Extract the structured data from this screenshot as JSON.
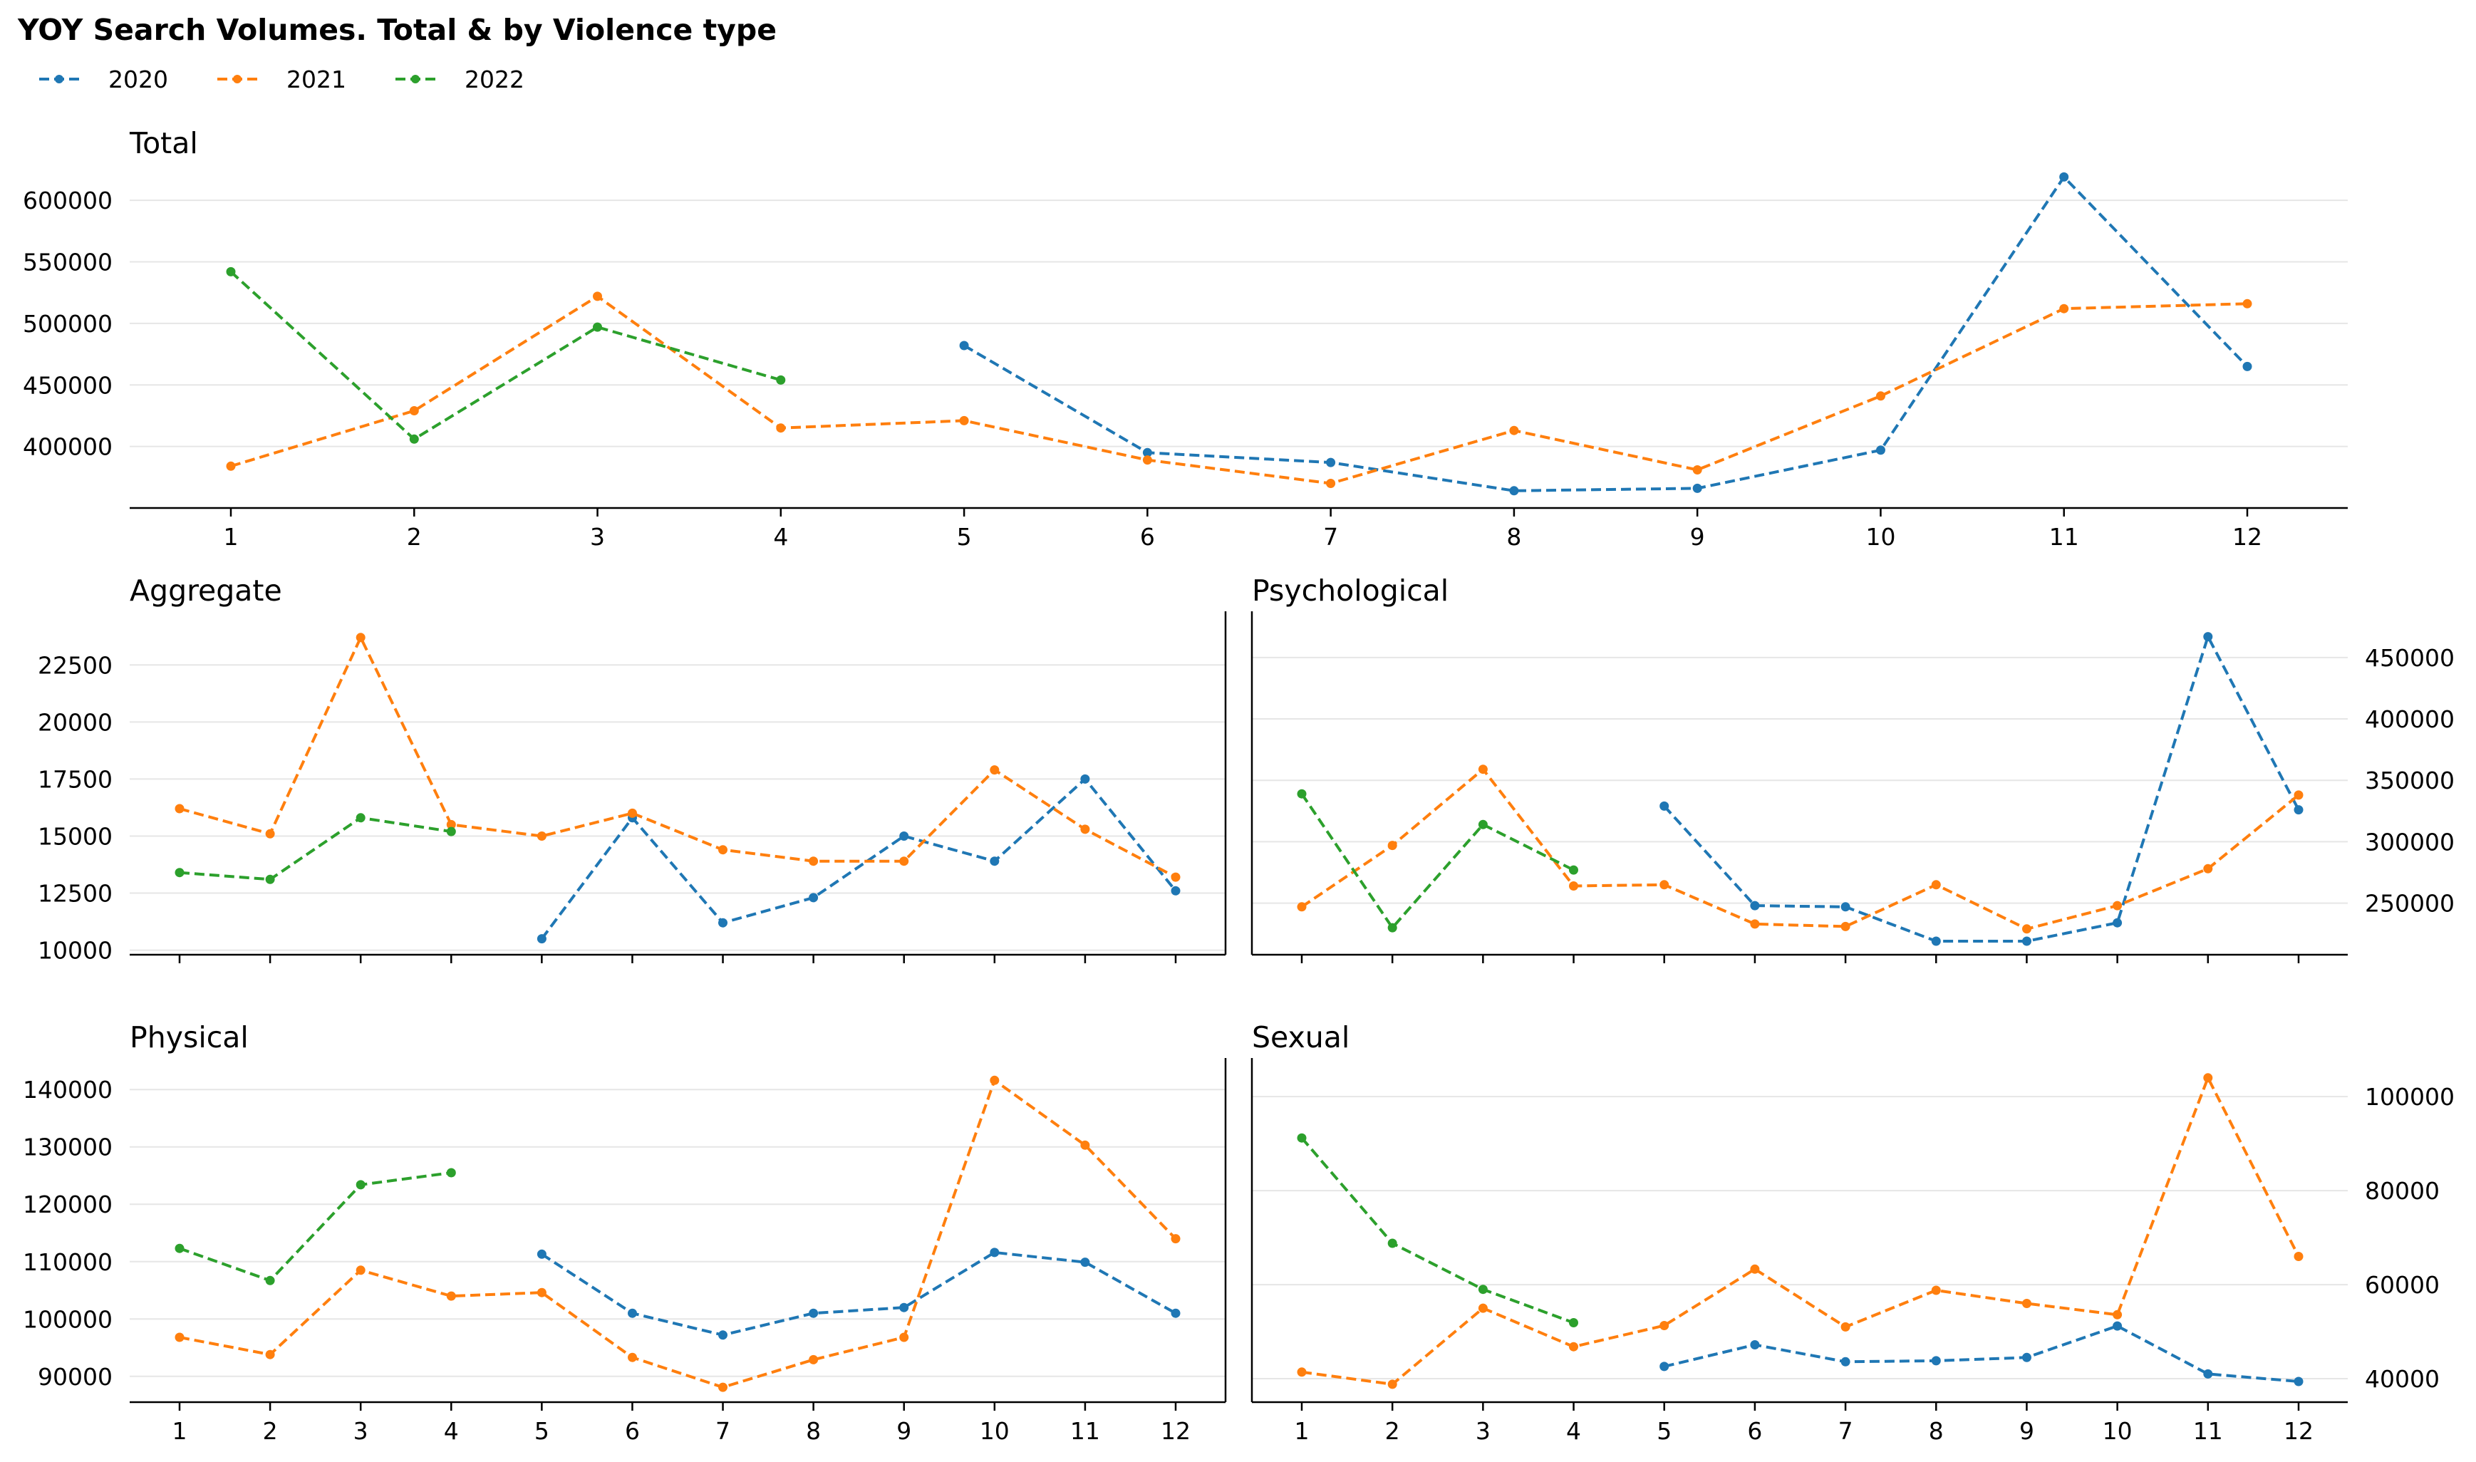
{
  "chart_data": {
    "type": "line",
    "title": "YOY Search Volumes. Total & by Violence type",
    "legend": {
      "placement": "top-left",
      "entries": [
        "2020",
        "2021",
        "2022"
      ]
    },
    "series_colors": {
      "2020": "#1f77b4",
      "2021": "#ff7f0e",
      "2022": "#2ca02c"
    },
    "line_style": "dashed",
    "marker": "dot",
    "x_categories": [
      "1",
      "2",
      "3",
      "4",
      "5",
      "6",
      "7",
      "8",
      "9",
      "10",
      "11",
      "12"
    ],
    "panels": [
      {
        "id": "total",
        "title": "Total",
        "ylim": [
          350000,
          625000
        ],
        "yticks": [
          400000,
          450000,
          500000,
          550000,
          600000
        ],
        "ytick_labels": [
          "400000",
          "450000",
          "500000",
          "550000",
          "600000"
        ],
        "y_axis_side": "left",
        "show_x_labels": true,
        "series": [
          {
            "name": "2020",
            "values": [
              null,
              null,
              null,
              null,
              482000,
              395000,
              387000,
              364000,
              366000,
              397000,
              619000,
              465000
            ]
          },
          {
            "name": "2021",
            "values": [
              384000,
              429000,
              522000,
              415000,
              421000,
              389000,
              370000,
              413000,
              381000,
              441000,
              512000,
              516000
            ]
          },
          {
            "name": "2022",
            "values": [
              542000,
              406000,
              497000,
              454000,
              null,
              null,
              null,
              null,
              null,
              null,
              null,
              null
            ]
          }
        ]
      },
      {
        "id": "aggregate",
        "title": "Aggregate",
        "ylim": [
          9800,
          24600
        ],
        "yticks": [
          10000,
          12500,
          15000,
          17500,
          20000,
          22500
        ],
        "ytick_labels": [
          "10000",
          "12500",
          "15000",
          "17500",
          "20000",
          "22500"
        ],
        "y_axis_side": "left",
        "show_x_labels": false,
        "series": [
          {
            "name": "2020",
            "values": [
              null,
              null,
              null,
              null,
              10500,
              15800,
              11200,
              12300,
              15000,
              13900,
              17500,
              12600
            ]
          },
          {
            "name": "2021",
            "values": [
              16200,
              15100,
              23700,
              15500,
              15000,
              16000,
              14400,
              13900,
              13900,
              17900,
              15300,
              13200
            ]
          },
          {
            "name": "2022",
            "values": [
              13400,
              13100,
              15800,
              15200,
              null,
              null,
              null,
              null,
              null,
              null,
              null,
              null
            ]
          }
        ]
      },
      {
        "id": "psychological",
        "title": "Psychological",
        "ylim": [
          208000,
          483000
        ],
        "yticks": [
          250000,
          300000,
          350000,
          400000,
          450000
        ],
        "ytick_labels": [
          "250000",
          "300000",
          "350000",
          "400000",
          "450000"
        ],
        "y_axis_side": "right",
        "show_x_labels": false,
        "series": [
          {
            "name": "2020",
            "values": [
              null,
              null,
              null,
              null,
              329000,
              248000,
              247000,
              219000,
              219000,
              234000,
              467000,
              326000
            ]
          },
          {
            "name": "2021",
            "values": [
              247000,
              297000,
              359000,
              264000,
              265000,
              233000,
              231000,
              265000,
              229000,
              248000,
              278000,
              338000
            ]
          },
          {
            "name": "2022",
            "values": [
              339000,
              230000,
              314000,
              277000,
              null,
              null,
              null,
              null,
              null,
              null,
              null,
              null
            ]
          }
        ]
      },
      {
        "id": "physical",
        "title": "Physical",
        "ylim": [
          85500,
          144500
        ],
        "yticks": [
          90000,
          100000,
          110000,
          120000,
          130000,
          140000
        ],
        "ytick_labels": [
          "90000",
          "100000",
          "110000",
          "120000",
          "130000",
          "140000"
        ],
        "y_axis_side": "left",
        "show_x_labels": true,
        "series": [
          {
            "name": "2020",
            "values": [
              null,
              null,
              null,
              null,
              111300,
              101000,
              97200,
              101000,
              102000,
              111600,
              109900,
              101000
            ]
          },
          {
            "name": "2021",
            "values": [
              96800,
              93800,
              108500,
              104000,
              104600,
              93300,
              88100,
              92900,
              96800,
              141600,
              130300,
              114000
            ]
          },
          {
            "name": "2022",
            "values": [
              112300,
              106700,
              123400,
              125500,
              null,
              null,
              null,
              null,
              null,
              null,
              null,
              null
            ]
          }
        ]
      },
      {
        "id": "sexual",
        "title": "Sexual",
        "ylim": [
          35000,
          107000
        ],
        "yticks": [
          40000,
          60000,
          80000,
          100000
        ],
        "ytick_labels": [
          "40000",
          "60000",
          "80000",
          "100000"
        ],
        "y_axis_side": "right",
        "show_x_labels": true,
        "series": [
          {
            "name": "2020",
            "values": [
              null,
              null,
              null,
              null,
              42600,
              47200,
              43600,
              43800,
              44500,
              51200,
              41000,
              39400
            ]
          },
          {
            "name": "2021",
            "values": [
              41400,
              38800,
              55000,
              46800,
              51300,
              63300,
              51000,
              58800,
              56000,
              53600,
              104000,
              66000
            ]
          },
          {
            "name": "2022",
            "values": [
              91200,
              68800,
              59000,
              51900,
              null,
              null,
              null,
              null,
              null,
              null,
              null,
              null
            ]
          }
        ]
      }
    ]
  }
}
